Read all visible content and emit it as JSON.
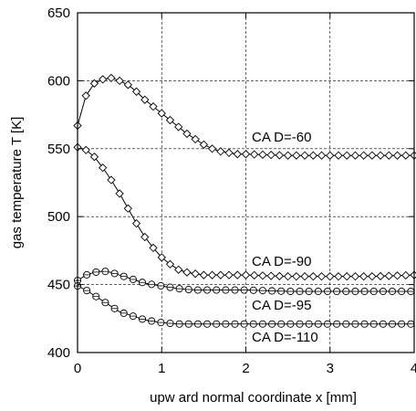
{
  "chart_data": {
    "type": "line",
    "title": "",
    "xlabel": "upw ard normal coordinate x [mm]",
    "ylabel": "gas temperature T [K]",
    "xlim": [
      0,
      4
    ],
    "ylim": [
      400,
      650
    ],
    "xticks": [
      0,
      1,
      2,
      3,
      4
    ],
    "yticks": [
      400,
      450,
      500,
      550,
      600,
      650
    ],
    "grid": true,
    "grid_style": "dashed",
    "legend": "none",
    "series": [
      {
        "marker": "diamond",
        "annotation": "CA D=-60",
        "x": [
          0.0,
          0.1,
          0.2,
          0.3,
          0.4,
          0.5,
          0.6,
          0.7,
          0.8,
          0.9,
          1.0,
          1.1,
          1.2,
          1.3,
          1.4,
          1.5,
          1.6,
          1.7,
          1.8,
          1.9,
          2.0,
          2.5,
          3.0,
          3.5,
          4.0
        ],
        "y": [
          567,
          589,
          598,
          601,
          602,
          600,
          597,
          592,
          586,
          581,
          576,
          571,
          566,
          561,
          557,
          553,
          550,
          548,
          547,
          546,
          546,
          545,
          545,
          545,
          545
        ]
      },
      {
        "marker": "diamond",
        "annotation": "CA D=-90",
        "x": [
          0.0,
          0.1,
          0.2,
          0.3,
          0.4,
          0.5,
          0.6,
          0.7,
          0.8,
          0.9,
          1.0,
          1.1,
          1.2,
          1.3,
          1.4,
          1.5,
          1.6,
          1.7,
          1.8,
          2.0,
          2.5,
          3.0,
          3.5,
          4.0
        ],
        "y": [
          551,
          549,
          544,
          536,
          527,
          517,
          506,
          495,
          485,
          477,
          470,
          465,
          461,
          459,
          458,
          457,
          457,
          457,
          457,
          457,
          456,
          456,
          456,
          457
        ]
      },
      {
        "marker": "circle",
        "annotation": "CA D=-95",
        "x": [
          0.0,
          0.1,
          0.2,
          0.3,
          0.4,
          0.5,
          0.6,
          0.7,
          0.8,
          1.0,
          1.2,
          1.4,
          1.6,
          2.0,
          2.5,
          3.0,
          3.5,
          4.0
        ],
        "y": [
          453,
          457,
          459,
          460,
          459,
          457,
          455,
          453,
          451,
          449,
          447,
          446,
          446,
          446,
          445,
          445,
          445,
          445
        ]
      },
      {
        "marker": "circle",
        "annotation": "CA D=-110",
        "x": [
          0.0,
          0.1,
          0.2,
          0.3,
          0.4,
          0.5,
          0.6,
          0.7,
          0.8,
          0.9,
          1.0,
          1.2,
          1.4,
          2.0,
          2.5,
          3.0,
          3.5,
          4.0
        ],
        "y": [
          449,
          446,
          442,
          438,
          434,
          430,
          428,
          426,
          424,
          423,
          422,
          421,
          421,
          421,
          421,
          421,
          421,
          421
        ]
      }
    ]
  }
}
